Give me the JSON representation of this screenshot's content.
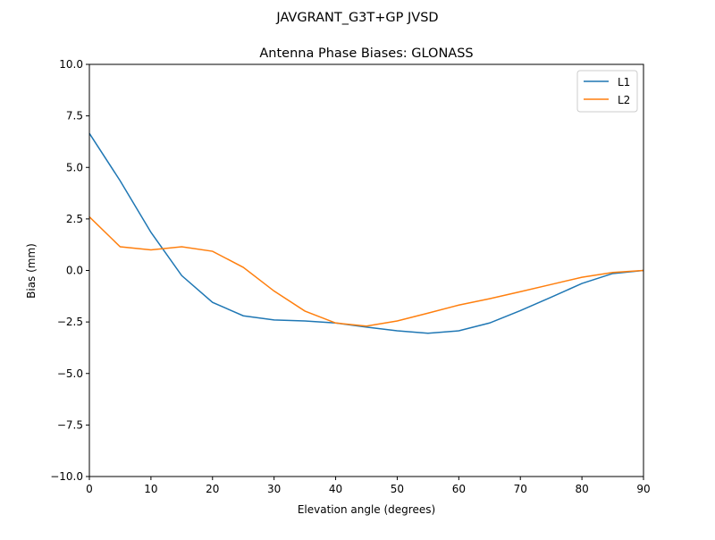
{
  "chart_data": {
    "type": "line",
    "suptitle": "JAVGRANT_G3T+GP JVSD",
    "title": "Antenna Phase Biases: GLONASS",
    "xlabel": "Elevation angle (degrees)",
    "ylabel": "Bias (mm)",
    "xlim": [
      0,
      90
    ],
    "ylim": [
      -10,
      10
    ],
    "xticks": [
      0,
      10,
      20,
      30,
      40,
      50,
      60,
      70,
      80,
      90
    ],
    "yticks": [
      "−10.0",
      "−7.5",
      "−5.0",
      "−2.5",
      "0.0",
      "2.5",
      "5.0",
      "7.5",
      "10.0"
    ],
    "ytick_values": [
      -10,
      -7.5,
      -5,
      -2.5,
      0,
      2.5,
      5,
      7.5,
      10
    ],
    "grid": false,
    "legend_position": "top-right",
    "x": [
      0,
      5,
      10,
      15,
      20,
      25,
      30,
      35,
      40,
      45,
      50,
      55,
      60,
      65,
      70,
      75,
      80,
      85,
      90
    ],
    "series": [
      {
        "name": "L1",
        "color": "#1f77b4",
        "values": [
          6.65,
          4.35,
          1.85,
          -0.25,
          -1.55,
          -2.2,
          -2.4,
          -2.45,
          -2.55,
          -2.75,
          -2.93,
          -3.05,
          -2.93,
          -2.55,
          -1.95,
          -1.3,
          -0.63,
          -0.15,
          0.0
        ]
      },
      {
        "name": "L2",
        "color": "#ff7f0e",
        "values": [
          2.6,
          1.15,
          1.0,
          1.15,
          0.93,
          0.15,
          -1.0,
          -1.97,
          -2.55,
          -2.7,
          -2.45,
          -2.07,
          -1.68,
          -1.37,
          -1.03,
          -0.68,
          -0.33,
          -0.1,
          0.0
        ]
      }
    ]
  }
}
